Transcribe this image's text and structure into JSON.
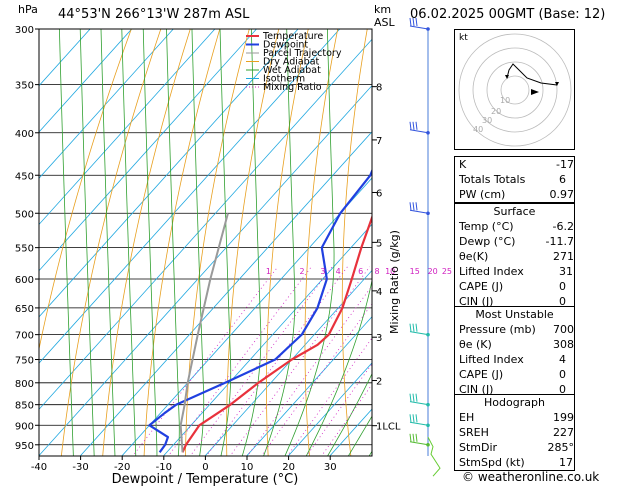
{
  "header": {
    "location": "44°53'N  266°13'W  287m  ASL",
    "datetime": "06.02.2025  00GMT  (Base: 12)",
    "hpa_label": "hPa",
    "km_label": "km",
    "asl_label": "ASL"
  },
  "footer": "© weatheronline.co.uk",
  "chart_data": {
    "type": "skew-t log-p",
    "xlabel": "Dewpoint / Temperature (°C)",
    "ylabel_right": "Mixing Ratio (g/kg)",
    "x_ticks": [
      -40,
      -30,
      -20,
      -10,
      0,
      10,
      20,
      30
    ],
    "pressure_ticks": [
      300,
      350,
      400,
      450,
      500,
      550,
      600,
      650,
      700,
      750,
      800,
      850,
      900,
      950
    ],
    "height_ticks_km": [
      {
        "p": 352,
        "label": "8"
      },
      {
        "p": 408,
        "label": "7"
      },
      {
        "p": 472,
        "label": "6"
      },
      {
        "p": 542,
        "label": "5"
      },
      {
        "p": 620,
        "label": "4"
      },
      {
        "p": 705,
        "label": "3"
      },
      {
        "p": 795,
        "label": "2"
      },
      {
        "p": 901,
        "label": "1LCL"
      }
    ],
    "mixing_ratio_labels": [
      "1",
      "2",
      "3",
      "4",
      "6",
      "8",
      "10",
      "15",
      "20",
      "25"
    ],
    "legend": [
      {
        "name": "Temperature",
        "color": "#e8323c"
      },
      {
        "name": "Dewpoint",
        "color": "#2040e0"
      },
      {
        "name": "Parcel Trajectory",
        "color": "#9a9a9a"
      },
      {
        "name": "Dry Adiabat",
        "color": "#e8a020"
      },
      {
        "name": "Wet Adiabat",
        "color": "#30a030"
      },
      {
        "name": "Isotherm",
        "color": "#20a8e0"
      },
      {
        "name": "Mixing Ratio",
        "color": "#d020c0"
      }
    ],
    "series": [
      {
        "name": "Temperature",
        "points": [
          [
            970,
            -6.2
          ],
          [
            950,
            -7
          ],
          [
            900,
            -8
          ],
          [
            850,
            -5
          ],
          [
            800,
            -3
          ],
          [
            750,
            0
          ],
          [
            720,
            3
          ],
          [
            700,
            3.5
          ],
          [
            650,
            1
          ],
          [
            600,
            -3
          ],
          [
            550,
            -7.5
          ],
          [
            500,
            -12
          ],
          [
            450,
            -17
          ],
          [
            400,
            -23
          ],
          [
            350,
            -30
          ],
          [
            300,
            -38
          ]
        ]
      },
      {
        "name": "Dewpoint",
        "points": [
          [
            970,
            -11.7
          ],
          [
            950,
            -12
          ],
          [
            930,
            -13
          ],
          [
            900,
            -20
          ],
          [
            870,
            -19
          ],
          [
            850,
            -18
          ],
          [
            800,
            -11
          ],
          [
            750,
            -4
          ],
          [
            700,
            -3
          ],
          [
            650,
            -5
          ],
          [
            600,
            -9
          ],
          [
            550,
            -17
          ],
          [
            500,
            -20
          ],
          [
            450,
            -21
          ],
          [
            400,
            -26
          ],
          [
            350,
            -33
          ],
          [
            300,
            -41
          ]
        ]
      },
      {
        "name": "Parcel Trajectory",
        "points": [
          [
            970,
            -6.2
          ],
          [
            900,
            -12.5
          ],
          [
            850,
            -16
          ],
          [
            800,
            -20
          ],
          [
            700,
            -28
          ],
          [
            600,
            -37
          ],
          [
            500,
            -47
          ]
        ]
      }
    ]
  },
  "hodograph": {
    "label": "kt",
    "rings": [
      "10",
      "20",
      "30",
      "40"
    ]
  },
  "indices": [
    {
      "k": "K",
      "v": "-17"
    },
    {
      "k": "Totals Totals",
      "v": "6"
    },
    {
      "k": "PW (cm)",
      "v": "0.97"
    }
  ],
  "surface": {
    "title": "Surface",
    "rows": [
      {
        "k": "Temp (°C)",
        "v": "-6.2"
      },
      {
        "k": "Dewp (°C)",
        "v": "-11.7"
      },
      {
        "k": "θe(K)",
        "v": "271"
      },
      {
        "k": "Lifted Index",
        "v": "31"
      },
      {
        "k": "CAPE (J)",
        "v": "0"
      },
      {
        "k": "CIN (J)",
        "v": "0"
      }
    ]
  },
  "most_unstable": {
    "title": "Most Unstable",
    "rows": [
      {
        "k": "Pressure (mb)",
        "v": "700"
      },
      {
        "k": "θe (K)",
        "v": "308"
      },
      {
        "k": "Lifted Index",
        "v": "4"
      },
      {
        "k": "CAPE (J)",
        "v": "0"
      },
      {
        "k": "CIN (J)",
        "v": "0"
      }
    ]
  },
  "hodograph_table": {
    "title": "Hodograph",
    "rows": [
      {
        "k": "EH",
        "v": "199"
      },
      {
        "k": "SREH",
        "v": "227"
      },
      {
        "k": "StmDir",
        "v": "285°"
      },
      {
        "k": "StmSpd (kt)",
        "v": "17"
      }
    ]
  }
}
